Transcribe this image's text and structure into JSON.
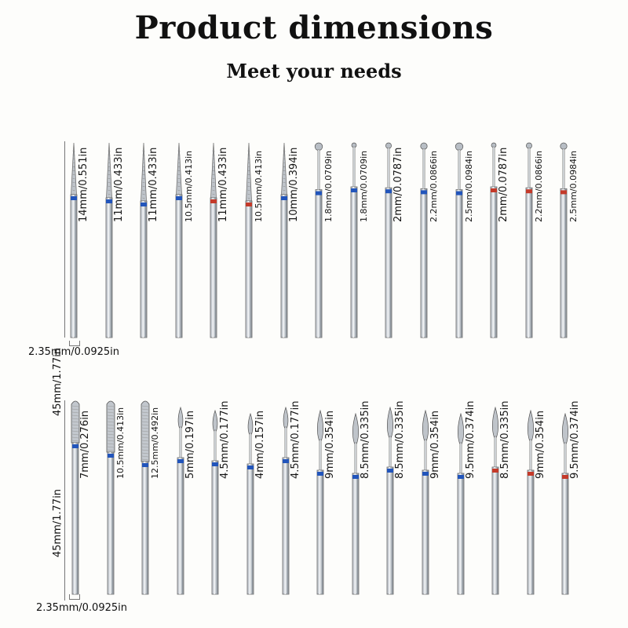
{
  "header": {
    "title": "Product dimensions",
    "subtitle": "Meet your needs"
  },
  "colors": {
    "blue_band": "#2255bb",
    "red_band": "#c43a2a",
    "steel": "#c9ced4"
  },
  "rows": [
    {
      "length_label": "45mm/1.77in",
      "diameter_label": "2.35mm/0.0925in",
      "bits": [
        {
          "shape": "needle",
          "label": "14mm/0.551in",
          "band": "blue"
        },
        {
          "shape": "needle",
          "label": "11mm/0.433in",
          "band": "blue"
        },
        {
          "shape": "needle",
          "label": "11mm/0.433in",
          "band": "blue"
        },
        {
          "shape": "needle",
          "label": "10.5mm/0.413in",
          "band": "blue"
        },
        {
          "shape": "needle",
          "label": "11mm/0.433in",
          "band": "red"
        },
        {
          "shape": "needle",
          "label": "10.5mm/0.413in",
          "band": "red"
        },
        {
          "shape": "needle",
          "label": "10mm/0.394in",
          "band": "blue"
        },
        {
          "shape": "ball",
          "label": "1.8mm/0.0709in",
          "band": "blue"
        },
        {
          "shape": "ball",
          "label": "1.8mm/0.0709in",
          "band": "blue"
        },
        {
          "shape": "ball",
          "label": "2mm/0.0787in",
          "band": "blue"
        },
        {
          "shape": "ball",
          "label": "2.2mm/0.0866in",
          "band": "blue"
        },
        {
          "shape": "ball",
          "label": "2.5mm/0.0984in",
          "band": "blue"
        },
        {
          "shape": "ball",
          "label": "2mm/0.0787in",
          "band": "red"
        },
        {
          "shape": "ball",
          "label": "2.2mm/0.0866in",
          "band": "red"
        },
        {
          "shape": "ball",
          "label": "2.5mm/0.0984in",
          "band": "red"
        }
      ]
    },
    {
      "length_label": "45mm/1.77in",
      "diameter_label": "2.35mm/0.0925in",
      "bits": [
        {
          "shape": "cylinder",
          "label": "7mm/0.276in",
          "band": "blue"
        },
        {
          "shape": "cylinder",
          "label": "10.5mm/0.413in",
          "band": "blue"
        },
        {
          "shape": "cylinder",
          "label": "12.5mm/0.492in",
          "band": "blue"
        },
        {
          "shape": "flame",
          "label": "5mm/0.197in",
          "band": "blue"
        },
        {
          "shape": "flame",
          "label": "4.5mm/0.177in",
          "band": "blue"
        },
        {
          "shape": "flame",
          "label": "4mm/0.157in",
          "band": "blue"
        },
        {
          "shape": "flame",
          "label": "4.5mm/0.177in",
          "band": "blue"
        },
        {
          "shape": "flame",
          "label": "9mm/0.354in",
          "band": "blue"
        },
        {
          "shape": "flame",
          "label": "8.5mm/0.335in",
          "band": "blue"
        },
        {
          "shape": "flame",
          "label": "8.5mm/0.335in",
          "band": "blue"
        },
        {
          "shape": "flame",
          "label": "9mm/0.354in",
          "band": "blue"
        },
        {
          "shape": "flame",
          "label": "9.5mm/0.374in",
          "band": "blue"
        },
        {
          "shape": "flame",
          "label": "8.5mm/0.335in",
          "band": "red"
        },
        {
          "shape": "flame",
          "label": "9mm/0.354in",
          "band": "red"
        },
        {
          "shape": "flame",
          "label": "9.5mm/0.374in",
          "band": "red"
        }
      ]
    }
  ]
}
